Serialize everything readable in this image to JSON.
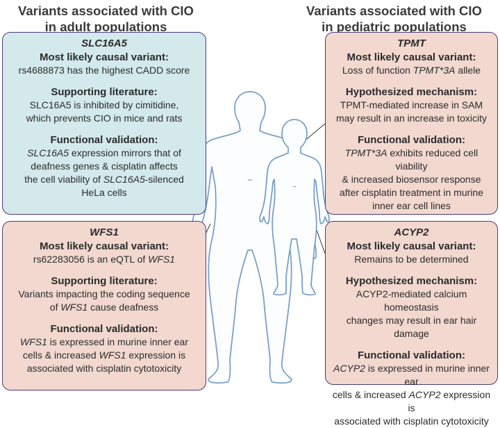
{
  "headings": {
    "left": [
      "Variants associated with CIO",
      "in adult populations"
    ],
    "right": [
      "Variants associated with CIO",
      "in pediatric populations"
    ]
  },
  "boxes": [
    {
      "id": "slc",
      "gene": "SLC16A5",
      "color": "#d3e9ec",
      "sections": [
        {
          "heading": "Most likely causal variant:",
          "lines": [
            "rs4688873 has the highest CADD score"
          ]
        },
        {
          "heading": "Supporting literature:",
          "lines": [
            "SLC16A5 is inhibited by cimitidine,",
            "which prevents CIO in mice and rats"
          ]
        },
        {
          "heading": "Functional validation:",
          "lines": [
            "<i>SLC16A5</i> expression mirrors that of",
            "deafness genes & cisplatin affects",
            "the cell viability of <i>SLC16A5</i>-silenced",
            "HeLa cells"
          ]
        }
      ]
    },
    {
      "id": "wfs",
      "gene": "WFS1",
      "color": "#f2d8cf",
      "sections": [
        {
          "heading": "Most likely causal variant:",
          "lines": [
            "rs62283056 is an eQTL of <i>WFS1</i>"
          ]
        },
        {
          "heading": "Supporting literature:",
          "lines": [
            "Variants impacting the coding sequence",
            "of <i>WFS1</i> cause deafness"
          ]
        },
        {
          "heading": "Functional validation:",
          "lines": [
            "<i>WFS1</i> is expressed in murine inner ear",
            "cells & increased <i>WFS1</i> expression is",
            "associated with cisplatin cytotoxicity"
          ]
        }
      ]
    },
    {
      "id": "tpmt",
      "gene": "TPMT",
      "color": "#f2d8cf",
      "sections": [
        {
          "heading": "Most likely causal variant:",
          "lines": [
            "Loss of function <i>TPMT*3A</i> allele"
          ]
        },
        {
          "heading": "Hypothesized mechanism:",
          "lines": [
            "TPMT-mediated increase in SAM",
            "may result in an increase in toxicity"
          ]
        },
        {
          "heading": "Functional validation:",
          "lines": [
            "<i>TPMT*3A</i> exhibits reduced cell viability",
            "& increased biosensor response",
            "after cisplatin treatment in murine",
            "inner ear cell lines"
          ]
        }
      ]
    },
    {
      "id": "acyp",
      "gene": "ACYP2",
      "color": "#f2d8cf",
      "sections": [
        {
          "heading": "Most likely causal variant:",
          "lines": [
            "Remains to be determined"
          ]
        },
        {
          "heading": "Hypothesized mechanism:",
          "lines": [
            "ACYP2-mediated calcium homeostasis",
            "changes may result in ear hair damage"
          ]
        },
        {
          "heading": "Functional validation:",
          "lines": [
            "<i>ACYP2</i> is expressed in murine inner ear",
            "cells & increased <i>ACYP2</i> expression is",
            "associated with cisplatin cytotoxicity"
          ]
        }
      ]
    }
  ],
  "colors": {
    "outline": "#4a3b7a",
    "figure": "#7aa0c8",
    "figure_fill": "#fbfdff"
  }
}
